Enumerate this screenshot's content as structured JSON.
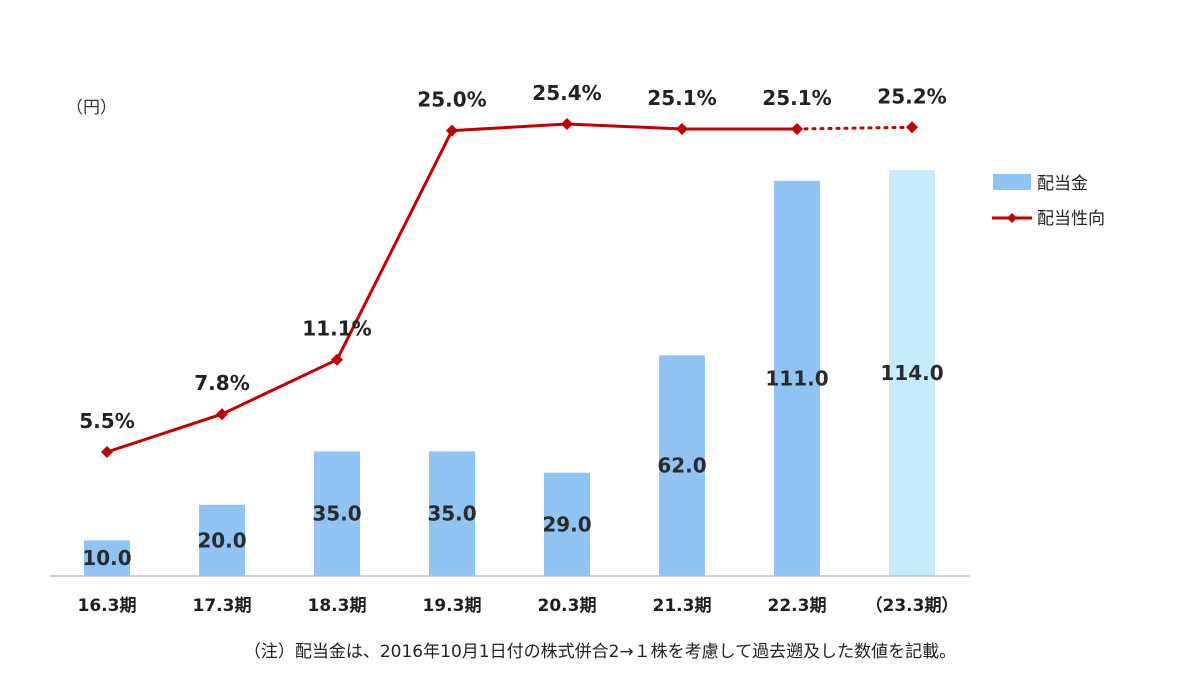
{
  "chart_data": {
    "type": "bar",
    "unit_label": "（円）",
    "categories": [
      "16.3期",
      "17.3期",
      "18.3期",
      "19.3期",
      "20.3期",
      "21.3期",
      "22.3期",
      "（23.3期）"
    ],
    "series": [
      {
        "name": "配当金",
        "type": "bar",
        "values": [
          10.0,
          20.0,
          35.0,
          35.0,
          29.0,
          62.0,
          111.0,
          114.0
        ],
        "labels": [
          "10.0",
          "20.0",
          "35.0",
          "35.0",
          "29.0",
          "62.0",
          "111.0",
          "114.0"
        ],
        "color": "#90c4f5",
        "forecast_color": "#c6ecfb"
      },
      {
        "name": "配当性向",
        "type": "line",
        "values": [
          5.5,
          7.8,
          11.1,
          25.0,
          25.4,
          25.1,
          25.1,
          25.2
        ],
        "labels": [
          "5.5%",
          "7.8%",
          "11.1%",
          "25.0%",
          "25.4%",
          "25.1%",
          "25.1%",
          "25.2%"
        ],
        "color": "#c00000"
      }
    ],
    "forecast_index": 7,
    "bar_axis_range": [
      0,
      125
    ],
    "legend_position": "right",
    "grid": false
  },
  "note": "（注）配当金は、2016年10月1日付の株式併合2→１株を考慮して過去遡及した数値を記載。"
}
